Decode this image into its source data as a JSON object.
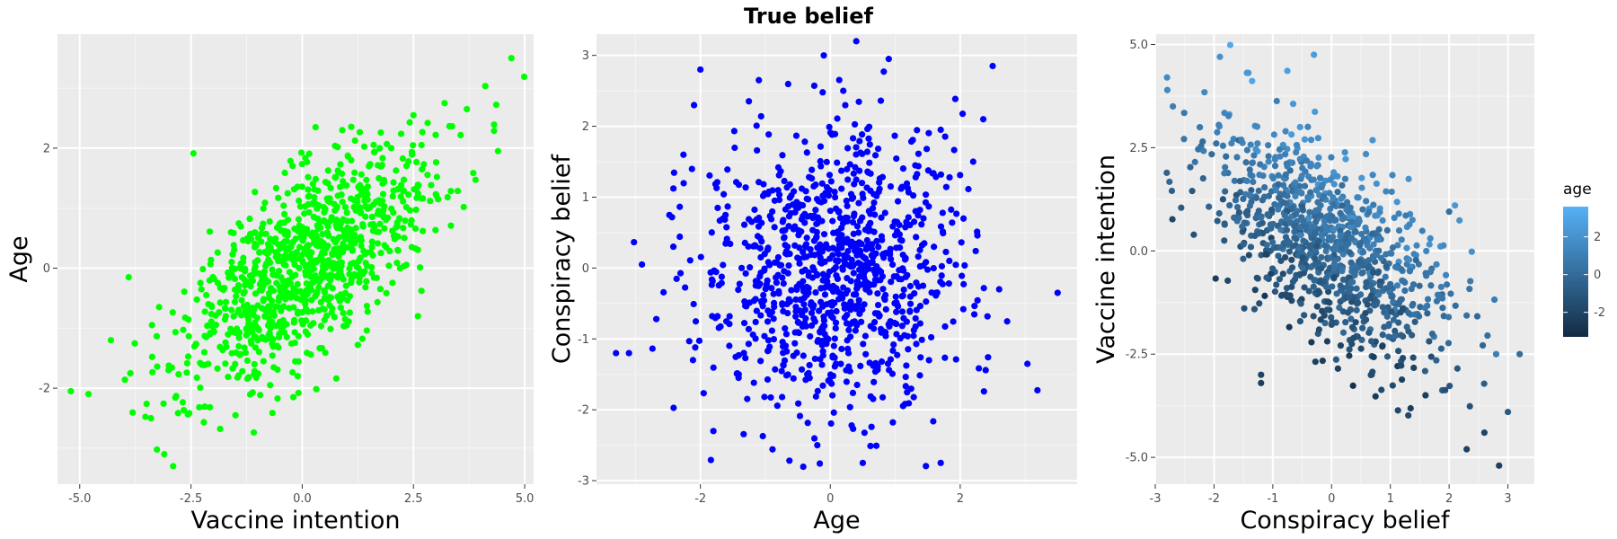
{
  "title": "True belief",
  "chart_data": [
    {
      "type": "scatter",
      "xlabel": "Vaccine intention",
      "ylabel": "Age",
      "xlim": [
        -5.5,
        5.2
      ],
      "ylim": [
        -3.6,
        3.9
      ],
      "x_ticks": [
        -5.0,
        -2.5,
        0.0,
        2.5,
        5.0
      ],
      "x_tick_labels": [
        "-5.0",
        "-2.5",
        "0.0",
        "2.5",
        "5.0"
      ],
      "y_ticks": [
        -2,
        0,
        2
      ],
      "y_tick_labels": [
        "-2",
        "0",
        "2"
      ],
      "point_color": "#00ff00",
      "n_points": 1000,
      "relationship": "strong positive correlation (~0.6)",
      "series": [
        {
          "x": [
            -5.2,
            -4.3,
            -3.9,
            -3.4,
            -3.1,
            -2.9,
            4.7,
            4.4,
            3.7,
            3.2,
            2.5,
            2.0,
            -1.5,
            -0.2,
            -0.7,
            1.1,
            1.5,
            2.2,
            2.6,
            -2.2,
            -1.0,
            0.3,
            0.9,
            -0.4
          ],
          "y": [
            -2.05,
            -1.2,
            -0.15,
            -2.5,
            -3.1,
            -3.3,
            3.5,
            1.95,
            2.65,
            2.75,
            2.55,
            2.0,
            -2.45,
            -2.15,
            0.3,
            1.8,
            1.7,
            0.0,
            -0.8,
            -1.4,
            -1.2,
            2.35,
            2.3,
            0.9
          ]
        }
      ]
    },
    {
      "type": "scatter",
      "xlabel": "Age",
      "ylabel": "Conspiracy belief",
      "xlim": [
        -3.6,
        3.8
      ],
      "ylim": [
        -3.05,
        3.3
      ],
      "x_ticks": [
        -2,
        0,
        2
      ],
      "x_tick_labels": [
        "-2",
        "0",
        "2"
      ],
      "y_ticks": [
        -3,
        -2,
        -1,
        0,
        1,
        2,
        3
      ],
      "y_tick_labels": [
        "-3",
        "-2",
        "-1",
        "0",
        "1",
        "2",
        "3"
      ],
      "point_color": "#0000ff",
      "n_points": 1000,
      "relationship": "no correlation",
      "series": [
        {
          "x": [
            -3.3,
            -3.1,
            -2.9,
            3.5,
            2.5,
            2.6,
            0.4,
            -0.1,
            -2.0,
            1.7,
            -1.1,
            0.9,
            2.2,
            -0.2,
            0.5,
            1.7,
            -1.8,
            0.2
          ],
          "y": [
            -1.2,
            -1.2,
            0.05,
            -0.35,
            2.85,
            -0.3,
            3.2,
            3.0,
            2.8,
            -2.75,
            2.65,
            2.95,
            1.5,
            -2.5,
            -2.75,
            1.95,
            -2.3,
            2.5
          ]
        }
      ]
    },
    {
      "type": "scatter",
      "xlabel": "Conspiracy belief",
      "ylabel": "Vaccine intention",
      "xlim": [
        -3.0,
        3.45
      ],
      "ylim": [
        -5.65,
        5.25
      ],
      "x_ticks": [
        -3,
        -2,
        -1,
        0,
        1,
        2,
        3
      ],
      "x_tick_labels": [
        "-3",
        "-2",
        "-1",
        "0",
        "1",
        "2",
        "3"
      ],
      "y_ticks": [
        -5.0,
        -2.5,
        0.0,
        2.5,
        5.0
      ],
      "y_tick_labels": [
        "-5.0",
        "-2.5",
        "0.0",
        "2.5",
        "5.0"
      ],
      "n_points": 1000,
      "relationship": "strong negative correlation (~-0.7), colored by age",
      "color_legend": {
        "title": "age",
        "range": [
          -3.3,
          3.6
        ],
        "ticks": [
          -2,
          0,
          2
        ],
        "tick_labels": [
          "-2",
          "0",
          "2"
        ],
        "low_color": "#132b43",
        "high_color": "#56b1f7"
      },
      "series": [
        {
          "x": [
            -0.3,
            -2.8,
            -2.7,
            -1.9,
            2.85,
            2.8,
            3.2,
            3.0,
            -1.2,
            -1.2,
            2.6,
            2.0
          ],
          "y": [
            4.75,
            4.2,
            3.5,
            4.7,
            -5.2,
            -2.5,
            -2.5,
            -3.9,
            -3.0,
            -3.2,
            -4.4,
            0.95
          ],
          "age": [
            2.5,
            1.6,
            1.0,
            2.0,
            -2.2,
            1.0,
            0.1,
            -0.9,
            -2.1,
            -2.3,
            -2.0,
            0.2
          ]
        }
      ]
    }
  ]
}
